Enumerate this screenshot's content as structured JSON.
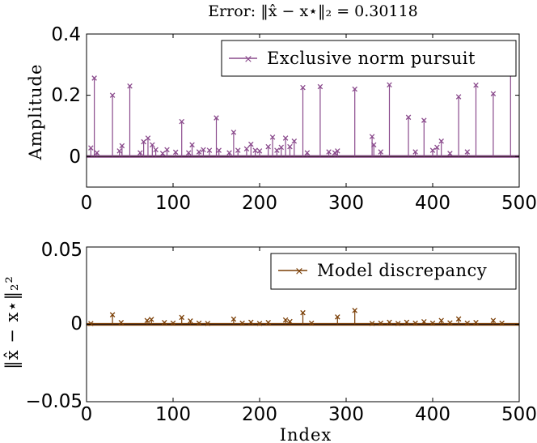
{
  "colors": {
    "top": "#8a4a8c",
    "bottom": "#7a3e05",
    "axis": "#000000"
  },
  "chart_data": [
    {
      "type": "stem",
      "title": "Error: ‖x̂ − x⋆‖₂ = 0.30118",
      "xlabel": "",
      "ylabel": "Amplitude",
      "xlim": [
        0,
        500
      ],
      "ylim": [
        -0.1,
        0.4
      ],
      "xticks": [
        "0",
        "100",
        "200",
        "300",
        "400",
        "500"
      ],
      "yticks": [
        "0",
        "0.2",
        "0.4"
      ],
      "ytick_values": [
        0,
        0.2,
        0.4
      ],
      "legend": "Exclusive norm pursuit",
      "legend_position": "top-right",
      "series": [
        {
          "name": "Exclusive norm pursuit",
          "x": [
            5,
            9,
            12,
            30,
            38,
            41,
            50,
            62,
            66,
            71,
            76,
            80,
            88,
            93,
            103,
            110,
            118,
            122,
            130,
            135,
            142,
            150,
            153,
            165,
            170,
            175,
            185,
            190,
            195,
            200,
            210,
            215,
            220,
            225,
            230,
            235,
            240,
            250,
            255,
            270,
            280,
            287,
            290,
            310,
            330,
            332,
            340,
            350,
            372,
            380,
            390,
            400,
            405,
            410,
            420,
            430,
            440,
            450,
            470,
            490
          ],
          "values": [
            0.028,
            0.256,
            0.012,
            0.2,
            0.018,
            0.035,
            0.23,
            0.012,
            0.048,
            0.06,
            0.038,
            0.022,
            0.01,
            0.022,
            0.014,
            0.114,
            0.012,
            0.038,
            0.015,
            0.022,
            0.02,
            0.126,
            0.02,
            0.012,
            0.079,
            0.02,
            0.025,
            0.04,
            0.02,
            0.018,
            0.032,
            0.063,
            0.02,
            0.03,
            0.06,
            0.032,
            0.05,
            0.225,
            0.012,
            0.228,
            0.015,
            0.012,
            0.018,
            0.22,
            0.065,
            0.038,
            0.015,
            0.234,
            0.128,
            0.015,
            0.118,
            0.02,
            0.03,
            0.05,
            0.01,
            0.195,
            0.015,
            0.233,
            0.205,
            0.278
          ]
        }
      ]
    },
    {
      "type": "stem",
      "title": "",
      "xlabel": "Index",
      "ylabel": "‖x̂ − x⋆‖₂²",
      "xlim": [
        0,
        500
      ],
      "ylim": [
        -0.05,
        0.05
      ],
      "xticks": [
        "0",
        "100",
        "200",
        "300",
        "400",
        "500"
      ],
      "yticks": [
        "0.05",
        "0",
        "−0.05"
      ],
      "ytick_values": [
        0.05,
        0,
        -0.05
      ],
      "legend": "Model discrepancy",
      "legend_position": "top-right",
      "series": [
        {
          "name": "Model discrepancy",
          "x": [
            5,
            30,
            40,
            70,
            75,
            90,
            100,
            110,
            120,
            130,
            140,
            170,
            180,
            190,
            200,
            210,
            230,
            235,
            250,
            260,
            290,
            310,
            330,
            340,
            350,
            360,
            370,
            380,
            390,
            400,
            410,
            420,
            430,
            440,
            450,
            470,
            480
          ],
          "values": [
            0.0005,
            0.0062,
            0.0012,
            0.0025,
            0.0032,
            0.0012,
            0.0008,
            0.0045,
            0.0022,
            0.0008,
            0.0006,
            0.0034,
            0.0008,
            0.0014,
            0.0006,
            0.0012,
            0.0028,
            0.0018,
            0.0075,
            0.0008,
            0.0048,
            0.009,
            0.0006,
            0.0008,
            0.0014,
            0.0006,
            0.0014,
            0.0008,
            0.0017,
            0.0008,
            0.0025,
            0.001,
            0.0035,
            0.0008,
            0.0012,
            0.0025,
            0.0008
          ]
        }
      ]
    }
  ]
}
